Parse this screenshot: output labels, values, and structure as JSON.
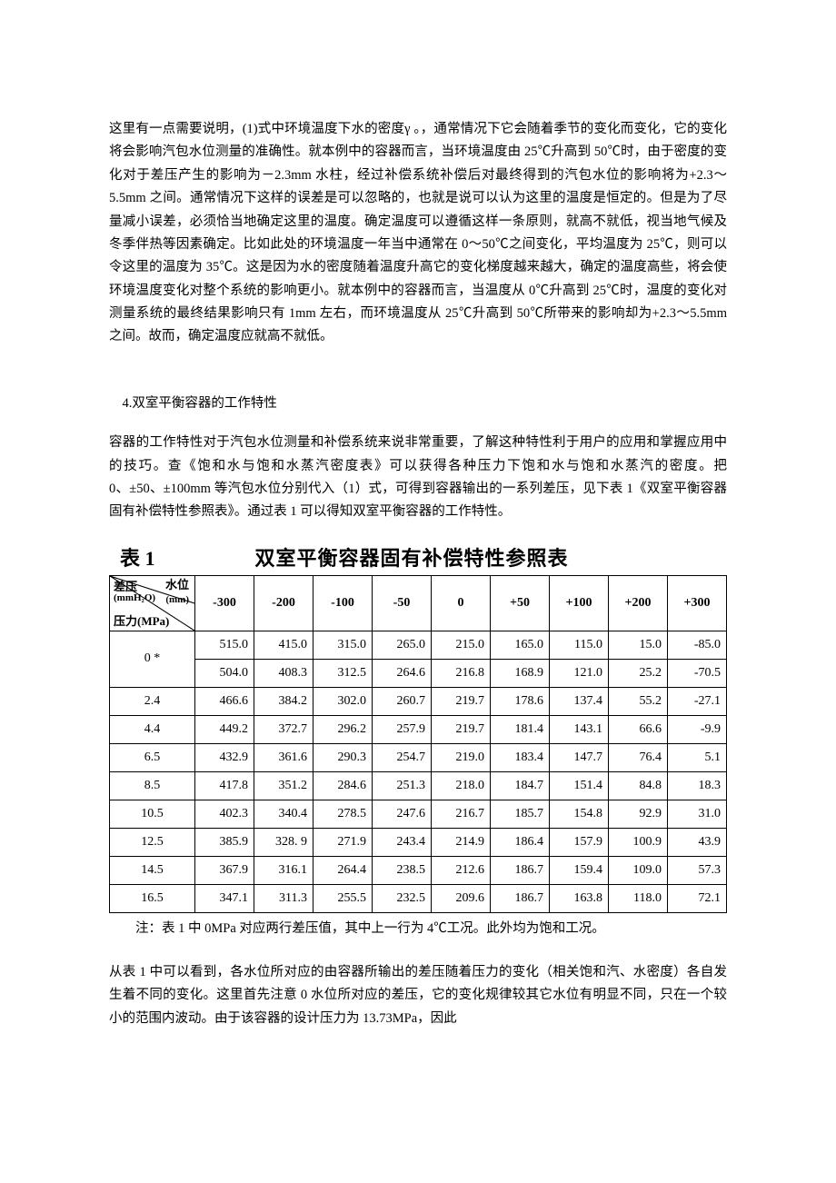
{
  "paragraphs": {
    "p1": "这里有一点需要说明，(1)式中环境温度下水的密度γ 。，通常情况下它会随着季节的变化而变化，它的变化将会影响汽包水位测量的准确性。就本例中的容器而言，当环境温度由 25℃升高到 50℃时，由于密度的变化对于差压产生的影响为－2.3mm 水柱，经过补偿系统补偿后对最终得到的汽包水位的影响将为+2.3～5.5mm 之间。通常情况下这样的误差是可以忽略的，也就是说可以认为这里的温度是恒定的。但是为了尽量减小误差，必须恰当地确定这里的温度。确定温度可以遵循这样一条原则，就高不就低，视当地气候及冬季伴热等因素确定。比如此处的环境温度一年当中通常在 0～50℃之间变化，平均温度为 25℃，则可以令这里的温度为 35℃。这是因为水的密度随着温度升高它的变化梯度越来越大，确定的温度高些，将会使环境温度变化对整个系统的影响更小。就本例中的容器而言，当温度从 0℃升高到 25℃时，温度的变化对测量系统的最终结果影响只有 1mm 左右，而环境温度从 25℃升高到 50℃所带来的影响却为+2.3～5.5mm 之间。故而，确定温度应就高不就低。",
    "section_head": "4.双室平衡容器的工作特性",
    "p2": "容器的工作特性对于汽包水位测量和补偿系统来说非常重要，了解这种特性利于用户的应用和掌握应用中的技巧。查《饱和水与饱和水蒸汽密度表》可以获得各种压力下饱和水与饱和水蒸汽的密度。把 0、±50、±100mm 等汽包水位分别代入（1）式，可得到容器输出的一系列差压，见下表 1《双室平衡容器固有补偿特性参照表》。通过表 1 可以得知双室平衡容器的工作特性。",
    "table_note": "注：表 1 中 0MPa 对应两行差压值，其中上一行为 4℃工况。此外均为饱和工况。",
    "p3": "从表 1 中可以看到，各水位所对应的由容器所输出的差压随着压力的变化（相关饱和汽、水密度）各自发生着不同的变化。这里首先注意 0 水位所对应的差压，它的变化规律较其它水位有明显不同，只在一个较小的范围内波动。由于该容器的设计压力为 13.73MPa，因此"
  },
  "table": {
    "label": "表 1",
    "caption": "双室平衡容器固有补偿特性参照表",
    "diag": {
      "top_left": "差压",
      "unit_left": "(mmH₂O)",
      "top_right": "水位",
      "unit_right": "(mm)",
      "bottom": "压力(MPa)"
    },
    "columns": [
      "-300",
      "-200",
      "-100",
      "-50",
      "0",
      "+50",
      "+100",
      "+200",
      "+300"
    ],
    "rows": [
      {
        "head": "0 *",
        "span": 2,
        "cells": [
          [
            "515.0",
            "415.0",
            "315.0",
            "265.0",
            "215.0",
            "165.0",
            "115.0",
            "15.0",
            "-85.0"
          ],
          [
            "504.0",
            "408.3",
            "312.5",
            "264.6",
            "216.8",
            "168.9",
            "121.0",
            "25.2",
            "-70.5"
          ]
        ]
      },
      {
        "head": "2.4",
        "span": 1,
        "cells": [
          [
            "466.6",
            "384.2",
            "302.0",
            "260.7",
            "219.7",
            "178.6",
            "137.4",
            "55.2",
            "-27.1"
          ]
        ]
      },
      {
        "head": "4.4",
        "span": 1,
        "cells": [
          [
            "449.2",
            "372.7",
            "296.2",
            "257.9",
            "219.7",
            "181.4",
            "143.1",
            "66.6",
            "-9.9"
          ]
        ]
      },
      {
        "head": "6.5",
        "span": 1,
        "cells": [
          [
            "432.9",
            "361.6",
            "290.3",
            "254.7",
            "219.0",
            "183.4",
            "147.7",
            "76.4",
            "5.1"
          ]
        ]
      },
      {
        "head": "8.5",
        "span": 1,
        "cells": [
          [
            "417.8",
            "351.2",
            "284.6",
            "251.3",
            "218.0",
            "184.7",
            "151.4",
            "84.8",
            "18.3"
          ]
        ]
      },
      {
        "head": "10.5",
        "span": 1,
        "cells": [
          [
            "402.3",
            "340.4",
            "278.5",
            "247.6",
            "216.7",
            "185.7",
            "154.8",
            "92.9",
            "31.0"
          ]
        ]
      },
      {
        "head": "12.5",
        "span": 1,
        "cells": [
          [
            "385.9",
            "328. 9",
            "271.9",
            "243.4",
            "214.9",
            "186.4",
            "157.9",
            "100.9",
            "43.9"
          ]
        ]
      },
      {
        "head": "14.5",
        "span": 1,
        "cells": [
          [
            "367.9",
            "316.1",
            "264.4",
            "238.5",
            "212.6",
            "186.7",
            "159.4",
            "109.0",
            "57.3"
          ]
        ]
      },
      {
        "head": "16.5",
        "span": 1,
        "cells": [
          [
            "347.1",
            "311.3",
            "255.5",
            "232.5",
            "209.6",
            "186.7",
            "163.8",
            "118.0",
            "72.1"
          ]
        ]
      }
    ],
    "col_widths": {
      "head": "94px",
      "data": "auto"
    }
  }
}
